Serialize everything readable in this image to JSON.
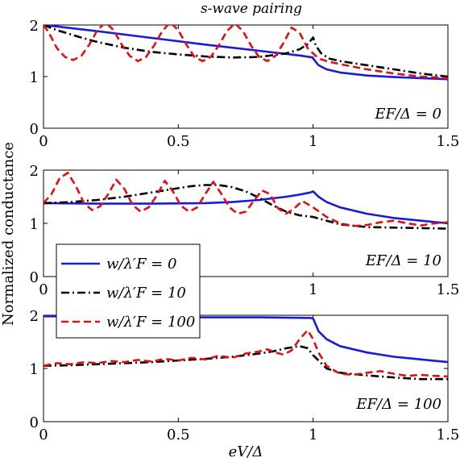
{
  "figure": {
    "title": "s-wave pairing",
    "xlabel": "eV/Δ",
    "ylabel": "Normalized conductance"
  },
  "legend": [
    {
      "label": "w/λ′F = 0",
      "color": "#1a1adb",
      "dash": "solid"
    },
    {
      "label": "w/λ′F = 10",
      "color": "#000000",
      "dash": "dashdot"
    },
    {
      "label": "w/λ′F = 100",
      "color": "#e01010",
      "dash": "dashed"
    }
  ],
  "chart_data": [
    {
      "type": "line",
      "annotation": "EF/Δ = 0",
      "xlim": [
        0,
        1.5
      ],
      "ylim": [
        0,
        2
      ],
      "xticks": [
        "0",
        "0.5",
        "1",
        "1.5"
      ],
      "yticks": [
        "0",
        "1",
        "2"
      ],
      "series": [
        {
          "name": "w/λ′F = 0",
          "x": [
            0,
            0.2,
            0.4,
            0.6,
            0.8,
            0.95,
            0.999,
            1.0,
            1.02,
            1.05,
            1.1,
            1.2,
            1.3,
            1.4,
            1.5
          ],
          "y": [
            2.0,
            1.88,
            1.75,
            1.62,
            1.5,
            1.41,
            1.37,
            1.35,
            1.22,
            1.14,
            1.08,
            1.02,
            0.99,
            0.97,
            0.95
          ]
        },
        {
          "name": "w/λ′F = 10",
          "x": [
            0,
            0.05,
            0.1,
            0.15,
            0.2,
            0.3,
            0.4,
            0.5,
            0.6,
            0.7,
            0.8,
            0.9,
            0.95,
            0.98,
            1.0,
            1.01,
            1.03,
            1.06,
            1.1,
            1.2,
            1.3,
            1.4,
            1.5
          ],
          "y": [
            2.0,
            1.9,
            1.82,
            1.74,
            1.67,
            1.56,
            1.48,
            1.43,
            1.39,
            1.37,
            1.38,
            1.45,
            1.53,
            1.63,
            1.76,
            1.6,
            1.45,
            1.35,
            1.3,
            1.22,
            1.14,
            1.06,
            1.0
          ]
        },
        {
          "name": "w/λ′F = 100",
          "x": [
            0,
            0.02,
            0.05,
            0.08,
            0.11,
            0.14,
            0.17,
            0.2,
            0.23,
            0.26,
            0.29,
            0.32,
            0.35,
            0.38,
            0.41,
            0.44,
            0.47,
            0.5,
            0.53,
            0.56,
            0.59,
            0.62,
            0.65,
            0.68,
            0.71,
            0.74,
            0.77,
            0.8,
            0.83,
            0.86,
            0.89,
            0.92,
            0.95,
            0.98,
            1.0,
            1.02,
            1.05,
            1.1,
            1.2,
            1.3,
            1.4,
            1.5
          ],
          "y": [
            2.0,
            1.85,
            1.55,
            1.38,
            1.32,
            1.4,
            1.62,
            1.9,
            2.05,
            1.9,
            1.62,
            1.4,
            1.3,
            1.38,
            1.6,
            1.88,
            2.05,
            1.9,
            1.62,
            1.38,
            1.3,
            1.38,
            1.6,
            1.88,
            2.03,
            1.88,
            1.6,
            1.38,
            1.3,
            1.4,
            1.65,
            1.95,
            1.85,
            1.55,
            1.45,
            1.35,
            1.3,
            1.24,
            1.14,
            1.06,
            1.0,
            0.97
          ]
        }
      ]
    },
    {
      "type": "line",
      "annotation": "EF/Δ = 10",
      "xlim": [
        0,
        1.5
      ],
      "ylim": [
        0,
        2
      ],
      "xticks": [
        "0",
        "0.5",
        "1",
        "1.5"
      ],
      "yticks": [
        "0",
        "1",
        "2"
      ],
      "series": [
        {
          "name": "w/λ′F = 0",
          "x": [
            0,
            0.2,
            0.4,
            0.6,
            0.7,
            0.8,
            0.9,
            0.95,
            0.99,
            1.0,
            1.02,
            1.05,
            1.1,
            1.2,
            1.3,
            1.4,
            1.5
          ],
          "y": [
            1.38,
            1.37,
            1.37,
            1.38,
            1.4,
            1.44,
            1.5,
            1.54,
            1.58,
            1.6,
            1.5,
            1.4,
            1.3,
            1.18,
            1.1,
            1.05,
            1.0
          ]
        },
        {
          "name": "w/λ′F = 10",
          "x": [
            0,
            0.1,
            0.2,
            0.3,
            0.4,
            0.5,
            0.55,
            0.6,
            0.65,
            0.7,
            0.75,
            0.8,
            0.85,
            0.9,
            0.95,
            1.0,
            1.05,
            1.1,
            1.2,
            1.3,
            1.4,
            1.5
          ],
          "y": [
            1.38,
            1.4,
            1.44,
            1.5,
            1.58,
            1.66,
            1.7,
            1.72,
            1.72,
            1.68,
            1.6,
            1.48,
            1.34,
            1.22,
            1.15,
            1.12,
            1.05,
            0.98,
            0.93,
            0.92,
            0.91,
            0.9
          ]
        },
        {
          "name": "w/λ′F = 100",
          "x": [
            0,
            0.03,
            0.06,
            0.09,
            0.12,
            0.15,
            0.18,
            0.21,
            0.24,
            0.27,
            0.3,
            0.33,
            0.36,
            0.39,
            0.42,
            0.45,
            0.48,
            0.51,
            0.54,
            0.57,
            0.6,
            0.63,
            0.66,
            0.69,
            0.72,
            0.75,
            0.78,
            0.81,
            0.84,
            0.87,
            0.9,
            0.93,
            0.96,
            1.0,
            1.05,
            1.1,
            1.15,
            1.2,
            1.25,
            1.3,
            1.35,
            1.4,
            1.45,
            1.5
          ],
          "y": [
            1.38,
            1.55,
            1.85,
            1.95,
            1.7,
            1.38,
            1.25,
            1.32,
            1.55,
            1.82,
            1.65,
            1.35,
            1.22,
            1.3,
            1.52,
            1.8,
            1.6,
            1.33,
            1.22,
            1.3,
            1.55,
            1.78,
            1.55,
            1.3,
            1.18,
            1.22,
            1.42,
            1.62,
            1.55,
            1.28,
            1.18,
            1.28,
            1.42,
            1.3,
            1.12,
            1.0,
            0.95,
            0.97,
            1.02,
            1.05,
            1.0,
            0.96,
            1.0,
            1.02
          ]
        }
      ]
    },
    {
      "type": "line",
      "annotation": "EF/Δ = 100",
      "xlim": [
        0,
        1.5
      ],
      "ylim": [
        0,
        2
      ],
      "xticks": [
        "0",
        "0.5",
        "1",
        "1.5"
      ],
      "yticks": [
        "0",
        "1",
        "2"
      ],
      "series": [
        {
          "name": "w/λ′F = 0",
          "x": [
            0,
            0.2,
            0.4,
            0.6,
            0.8,
            0.99,
            1.0,
            1.02,
            1.05,
            1.1,
            1.2,
            1.3,
            1.4,
            1.5
          ],
          "y": [
            1.98,
            1.98,
            1.97,
            1.96,
            1.96,
            1.95,
            1.94,
            1.7,
            1.55,
            1.42,
            1.3,
            1.22,
            1.17,
            1.12
          ]
        },
        {
          "name": "w/λ′F = 10",
          "x": [
            0,
            0.1,
            0.2,
            0.3,
            0.4,
            0.5,
            0.6,
            0.7,
            0.75,
            0.8,
            0.85,
            0.9,
            0.95,
            0.98,
            1.0,
            1.05,
            1.1,
            1.2,
            1.3,
            1.4,
            1.5
          ],
          "y": [
            1.05,
            1.06,
            1.08,
            1.1,
            1.12,
            1.15,
            1.18,
            1.22,
            1.25,
            1.28,
            1.32,
            1.38,
            1.42,
            1.38,
            1.25,
            1.0,
            0.92,
            0.87,
            0.83,
            0.8,
            0.8
          ]
        },
        {
          "name": "w/λ′F = 100",
          "x": [
            0,
            0.05,
            0.1,
            0.15,
            0.2,
            0.25,
            0.3,
            0.35,
            0.4,
            0.45,
            0.5,
            0.55,
            0.6,
            0.65,
            0.7,
            0.75,
            0.8,
            0.83,
            0.86,
            0.89,
            0.92,
            0.95,
            0.98,
            1.0,
            1.02,
            1.05,
            1.1,
            1.15,
            1.2,
            1.25,
            1.3,
            1.35,
            1.4,
            1.45,
            1.5
          ],
          "y": [
            1.05,
            1.1,
            1.08,
            1.12,
            1.1,
            1.14,
            1.12,
            1.16,
            1.13,
            1.18,
            1.15,
            1.2,
            1.17,
            1.24,
            1.2,
            1.28,
            1.32,
            1.36,
            1.3,
            1.26,
            1.34,
            1.55,
            1.72,
            1.55,
            1.3,
            1.05,
            0.9,
            0.88,
            0.92,
            0.95,
            0.9,
            0.86,
            0.88,
            0.86,
            0.85
          ]
        }
      ]
    }
  ]
}
